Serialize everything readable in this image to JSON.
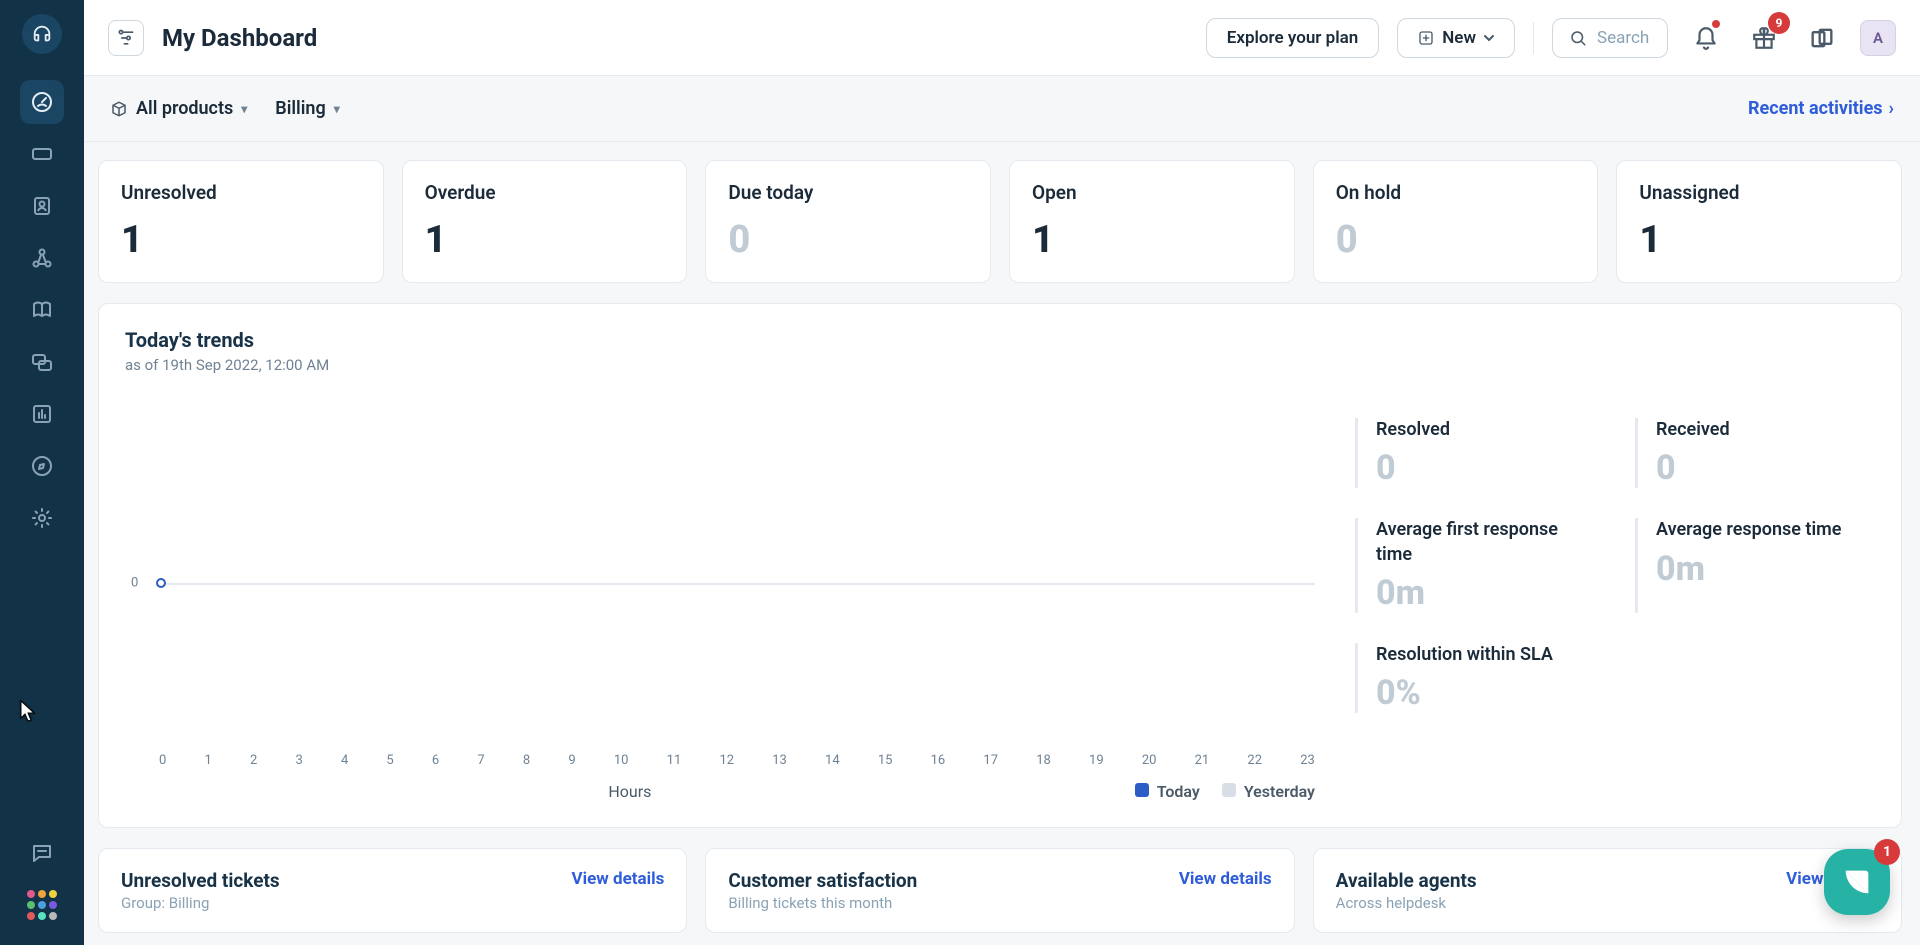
{
  "topbar": {
    "title": "My Dashboard",
    "explore": "Explore your plan",
    "new": "New",
    "search_placeholder": "Search",
    "gift_badge": "9",
    "avatar_initial": "A"
  },
  "filters": {
    "products": "All products",
    "scope": "Billing",
    "recent": "Recent activities"
  },
  "stat_cards": [
    {
      "label": "Unresolved",
      "value": "1",
      "mute": false
    },
    {
      "label": "Overdue",
      "value": "1",
      "mute": false
    },
    {
      "label": "Due today",
      "value": "0",
      "mute": true
    },
    {
      "label": "Open",
      "value": "1",
      "mute": false
    },
    {
      "label": "On hold",
      "value": "0",
      "mute": true
    },
    {
      "label": "Unassigned",
      "value": "1",
      "mute": false
    }
  ],
  "trends": {
    "title": "Today's trends",
    "subtitle": "as of 19th Sep 2022, 12:00 AM",
    "chart": {
      "type": "line",
      "x_ticks": [
        "0",
        "1",
        "2",
        "3",
        "4",
        "5",
        "6",
        "7",
        "8",
        "9",
        "10",
        "11",
        "12",
        "13",
        "14",
        "15",
        "16",
        "17",
        "18",
        "19",
        "20",
        "21",
        "22",
        "23"
      ],
      "x_label": "Hours",
      "y_tick": "0",
      "series": [
        {
          "name": "Today",
          "color": "#2c5cc5",
          "points": [
            {
              "x": 0,
              "y": 0
            }
          ]
        },
        {
          "name": "Yesterday",
          "color": "#d7dee5",
          "points": []
        }
      ],
      "axis_color": "#e4eaef",
      "tick_color": "#6f8294",
      "background": "#ffffff",
      "tick_fontsize": 13,
      "label_fontsize": 16
    },
    "side": [
      {
        "label": "Resolved",
        "value": "0"
      },
      {
        "label": "Received",
        "value": "0"
      },
      {
        "label": "Average first response time",
        "value": "0m"
      },
      {
        "label": "Average response time",
        "value": "0m"
      },
      {
        "label": "Resolution within SLA",
        "value": "0%",
        "full": true
      }
    ]
  },
  "widgets": [
    {
      "title": "Unresolved tickets",
      "subtitle": "Group: Billing",
      "link": "View details"
    },
    {
      "title": "Customer satisfaction",
      "subtitle": "Billing tickets this month",
      "link": "View details"
    },
    {
      "title": "Available agents",
      "subtitle": "Across helpdesk",
      "link": "View details"
    }
  ],
  "help_fab_badge": "1",
  "apps_grid_colors": [
    "#e05a8b",
    "#f0a23c",
    "#f0d23c",
    "#5abf6e",
    "#4aa0e0",
    "#7a5ae0",
    "#e05a5a",
    "#5ae0c3",
    "#bababa"
  ],
  "colors": {
    "rail_bg": "#123247",
    "accent_blue": "#2c5cc5",
    "link_blue": "#2f5dd9",
    "mute_value": "#c0cbd4",
    "danger": "#d63a3a",
    "fab": "#26b2a5"
  }
}
